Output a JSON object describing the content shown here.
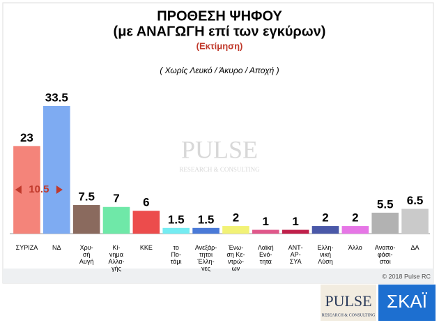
{
  "chart_data": {
    "type": "bar",
    "title": "ΠΡΟΘΕΣΗ ΨΗΦΟΥ",
    "subtitle": "(με ΑΝΑΓΩΓΗ επί των εγκύρων)",
    "estimate_label": "(Εκτίμηση)",
    "note": "( Χωρίς Λευκό / Άκυρο / Αποχή )",
    "annotation": "10.5",
    "copyright": "© 2018 Pulse RC",
    "watermark": {
      "name": "PULSE",
      "tagline": "RESEARCH & CONSULTING"
    },
    "logos": {
      "pulse": "PULSE",
      "pulse_tagline": "RESEARCH & CONSULTING",
      "skai": "ΣΚΑΪ"
    },
    "categories": [
      "ΣΥΡΙΖΑ",
      "ΝΔ",
      "Χρυ-\nσή\nΑυγή",
      "Κί-\nνημα\nΑλλα-\nγής",
      "ΚΚΕ",
      "το\nΠο-\nτάμι",
      "Ανεξάρ-\nτητοι\nΈλλη-\nνες",
      "Ένω-\nση Κε-\nντρώ-\nων",
      "Λαϊκή\nΕνό-\nτητα",
      "ΑΝΤ-\nΑΡ-\nΣΥΑ",
      "Ελλη-\nνική\nΛύση",
      "Άλλο",
      "Αναπο-\nφάσι-\nστοι",
      "ΔΑ"
    ],
    "values": [
      23,
      33.5,
      7.5,
      7,
      6,
      1.5,
      1.5,
      2,
      1,
      1,
      2,
      2,
      5.5,
      6.5
    ],
    "colors": [
      "#f4847a",
      "#7eabf2",
      "#8a6a5e",
      "#6fe8a8",
      "#ec4c4c",
      "#74ecf2",
      "#4a7ad8",
      "#f2f276",
      "#e0578a",
      "#c01f4a",
      "#4a58a8",
      "#e676e6",
      "#b2b2b2",
      "#cacaca"
    ]
  }
}
